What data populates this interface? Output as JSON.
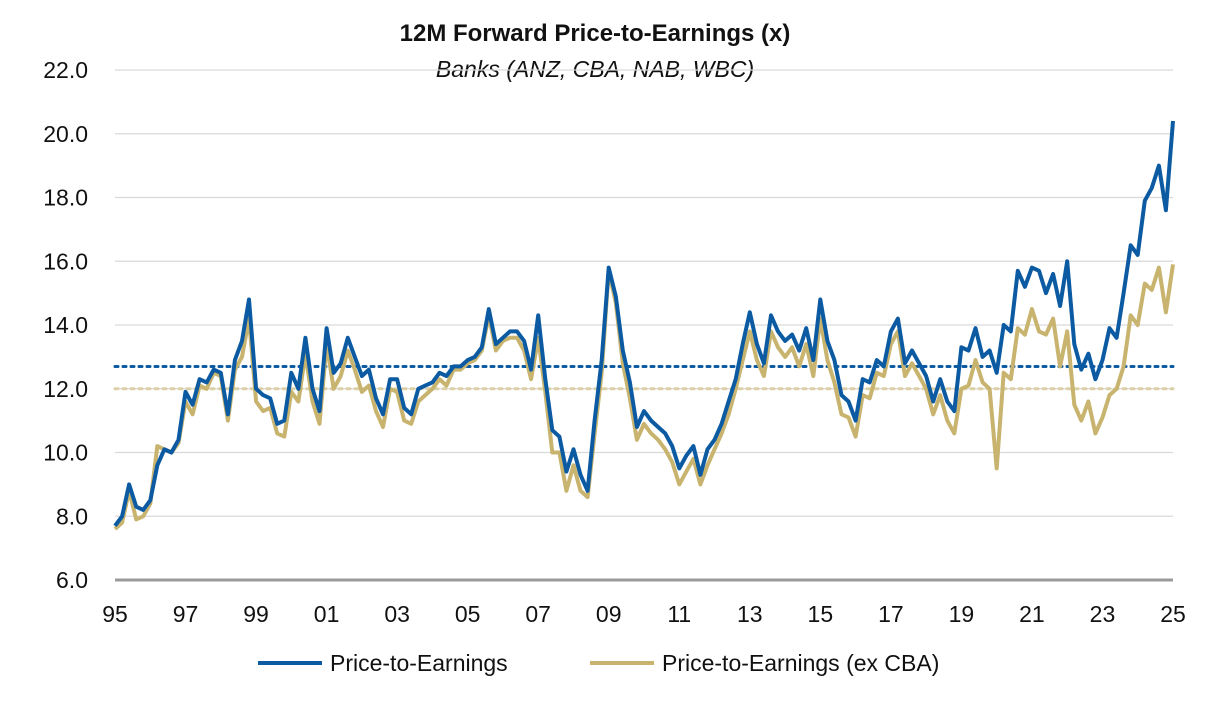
{
  "chart_data": {
    "type": "line",
    "title": "12M Forward Price-to-Earnings (x)",
    "subtitle": "Banks (ANZ, CBA, NAB, WBC)",
    "xlabel": "",
    "ylabel": "",
    "xlim": [
      1995,
      2025
    ],
    "ylim": [
      6,
      22
    ],
    "yticks": [
      "6.0",
      "8.0",
      "10.0",
      "12.0",
      "14.0",
      "16.0",
      "18.0",
      "20.0",
      "22.0"
    ],
    "xticks": [
      "95",
      "97",
      "99",
      "01",
      "03",
      "05",
      "07",
      "09",
      "11",
      "13",
      "15",
      "17",
      "19",
      "21",
      "23",
      "25"
    ],
    "grid": "horizontal",
    "legend_position": "bottom",
    "colors": {
      "pe": "#0b5aa2",
      "pe_ex_cba": "#c8b46e",
      "grid": "#d9d9d9",
      "axis": "#9a9a9a"
    },
    "averages": [
      {
        "name": "Price-to-Earnings average",
        "value": 12.7,
        "color": "#0b5aa2"
      },
      {
        "name": "Price-to-Earnings (ex CBA) average",
        "value": 12.0,
        "color": "#dcd0a6"
      }
    ],
    "series": [
      {
        "name": "Price-to-Earnings",
        "color": "#0b5aa2",
        "x": [
          1995.0,
          1995.2,
          1995.4,
          1995.6,
          1995.8,
          1996.0,
          1996.2,
          1996.4,
          1996.6,
          1996.8,
          1997.0,
          1997.2,
          1997.4,
          1997.6,
          1997.8,
          1998.0,
          1998.2,
          1998.4,
          1998.6,
          1998.8,
          1999.0,
          1999.2,
          1999.4,
          1999.6,
          1999.8,
          2000.0,
          2000.2,
          2000.4,
          2000.6,
          2000.8,
          2001.0,
          2001.2,
          2001.4,
          2001.6,
          2001.8,
          2002.0,
          2002.2,
          2002.4,
          2002.6,
          2002.8,
          2003.0,
          2003.2,
          2003.4,
          2003.6,
          2003.8,
          2004.0,
          2004.2,
          2004.4,
          2004.6,
          2004.8,
          2005.0,
          2005.2,
          2005.4,
          2005.6,
          2005.8,
          2006.0,
          2006.2,
          2006.4,
          2006.6,
          2006.8,
          2007.0,
          2007.2,
          2007.4,
          2007.6,
          2007.8,
          2008.0,
          2008.2,
          2008.4,
          2008.6,
          2008.8,
          2009.0,
          2009.2,
          2009.4,
          2009.6,
          2009.8,
          2010.0,
          2010.2,
          2010.4,
          2010.6,
          2010.8,
          2011.0,
          2011.2,
          2011.4,
          2011.6,
          2011.8,
          2012.0,
          2012.2,
          2012.4,
          2012.6,
          2012.8,
          2013.0,
          2013.2,
          2013.4,
          2013.6,
          2013.8,
          2014.0,
          2014.2,
          2014.4,
          2014.6,
          2014.8,
          2015.0,
          2015.2,
          2015.4,
          2015.6,
          2015.8,
          2016.0,
          2016.2,
          2016.4,
          2016.6,
          2016.8,
          2017.0,
          2017.2,
          2017.4,
          2017.6,
          2017.8,
          2018.0,
          2018.2,
          2018.4,
          2018.6,
          2018.8,
          2019.0,
          2019.2,
          2019.4,
          2019.6,
          2019.8,
          2020.0,
          2020.2,
          2020.4,
          2020.6,
          2020.8,
          2021.0,
          2021.2,
          2021.4,
          2021.6,
          2021.8,
          2022.0,
          2022.2,
          2022.4,
          2022.6,
          2022.8,
          2023.0,
          2023.2,
          2023.4,
          2023.6,
          2023.8,
          2024.0,
          2024.2,
          2024.4,
          2024.6,
          2024.8,
          2025.0
        ],
        "values": [
          7.7,
          8.0,
          9.0,
          8.3,
          8.2,
          8.5,
          9.6,
          10.1,
          10.0,
          10.4,
          11.9,
          11.5,
          12.3,
          12.2,
          12.6,
          12.5,
          11.2,
          12.9,
          13.5,
          14.8,
          12.0,
          11.8,
          11.7,
          10.9,
          11.0,
          12.5,
          12.0,
          13.6,
          12.0,
          11.3,
          13.9,
          12.5,
          12.8,
          13.6,
          13.0,
          12.4,
          12.6,
          11.7,
          11.2,
          12.3,
          12.3,
          11.4,
          11.2,
          12.0,
          12.1,
          12.2,
          12.5,
          12.4,
          12.7,
          12.7,
          12.9,
          13.0,
          13.3,
          14.5,
          13.4,
          13.6,
          13.8,
          13.8,
          13.5,
          12.6,
          14.3,
          12.3,
          10.7,
          10.5,
          9.4,
          10.1,
          9.3,
          8.8,
          11.0,
          12.9,
          15.8,
          14.9,
          13.2,
          12.2,
          10.8,
          11.3,
          11.0,
          10.8,
          10.6,
          10.2,
          9.5,
          9.9,
          10.2,
          9.3,
          10.1,
          10.4,
          10.9,
          11.6,
          12.3,
          13.4,
          14.4,
          13.4,
          12.8,
          14.3,
          13.8,
          13.5,
          13.7,
          13.2,
          13.9,
          12.9,
          14.8,
          13.5,
          12.9,
          11.8,
          11.6,
          11.0,
          12.3,
          12.2,
          12.9,
          12.7,
          13.8,
          14.2,
          12.8,
          13.2,
          12.8,
          12.4,
          11.6,
          12.3,
          11.6,
          11.3,
          13.3,
          13.2,
          13.9,
          13.0,
          13.2,
          12.5,
          14.0,
          13.8,
          15.7,
          15.2,
          15.8,
          15.7,
          15.0,
          15.6,
          14.6,
          16.0,
          13.4,
          12.6,
          13.1,
          12.3,
          12.9,
          13.9,
          13.6,
          15.0,
          16.5,
          16.2,
          17.9,
          18.3,
          19.0,
          17.6,
          20.4
        ],
        "values_ex": [
          7.6,
          7.8,
          8.8,
          7.9,
          8.0,
          8.4,
          10.2,
          10.1,
          10.0,
          10.3,
          11.6,
          11.2,
          12.1,
          12.0,
          12.5,
          12.4,
          11.0,
          12.6,
          13.0,
          14.2,
          11.6,
          11.3,
          11.4,
          10.6,
          10.5,
          11.9,
          11.6,
          13.1,
          11.6,
          10.9,
          13.4,
          12.0,
          12.4,
          13.2,
          12.6,
          11.9,
          12.1,
          11.3,
          10.8,
          12.0,
          11.9,
          11.0,
          10.9,
          11.6,
          11.8,
          12.0,
          12.3,
          12.1,
          12.6,
          12.6,
          12.8,
          12.9,
          13.2,
          14.3,
          13.2,
          13.5,
          13.6,
          13.6,
          13.2,
          12.3,
          13.6,
          11.9,
          10.0,
          10.0,
          8.8,
          9.6,
          8.8,
          8.6,
          10.6,
          12.5,
          15.7,
          14.7,
          12.8,
          11.7,
          10.4,
          10.9,
          10.6,
          10.4,
          10.1,
          9.7,
          9.0,
          9.4,
          9.8,
          9.0,
          9.6,
          10.1,
          10.6,
          11.2,
          12.0,
          12.9,
          13.8,
          12.9,
          12.4,
          13.8,
          13.3,
          13.0,
          13.3,
          12.7,
          13.4,
          12.4,
          14.2,
          12.9,
          12.2,
          11.2,
          11.1,
          10.5,
          11.8,
          11.7,
          12.5,
          12.4,
          13.4,
          13.8,
          12.4,
          12.8,
          12.4,
          12.0,
          11.2,
          11.8,
          11.0,
          10.6,
          12.0,
          12.1,
          12.9,
          12.2,
          12.0,
          9.5,
          12.5,
          12.3,
          13.9,
          13.7,
          14.5,
          13.8,
          13.7,
          14.2,
          12.7,
          13.8,
          11.5,
          11.0,
          11.6,
          10.6,
          11.1,
          11.8,
          12.0,
          12.7,
          14.3,
          14.0,
          15.3,
          15.1,
          15.8,
          14.4,
          15.9
        ]
      }
    ],
    "series_names": [
      "Price-to-Earnings",
      "Price-to-Earnings (ex CBA)"
    ]
  }
}
